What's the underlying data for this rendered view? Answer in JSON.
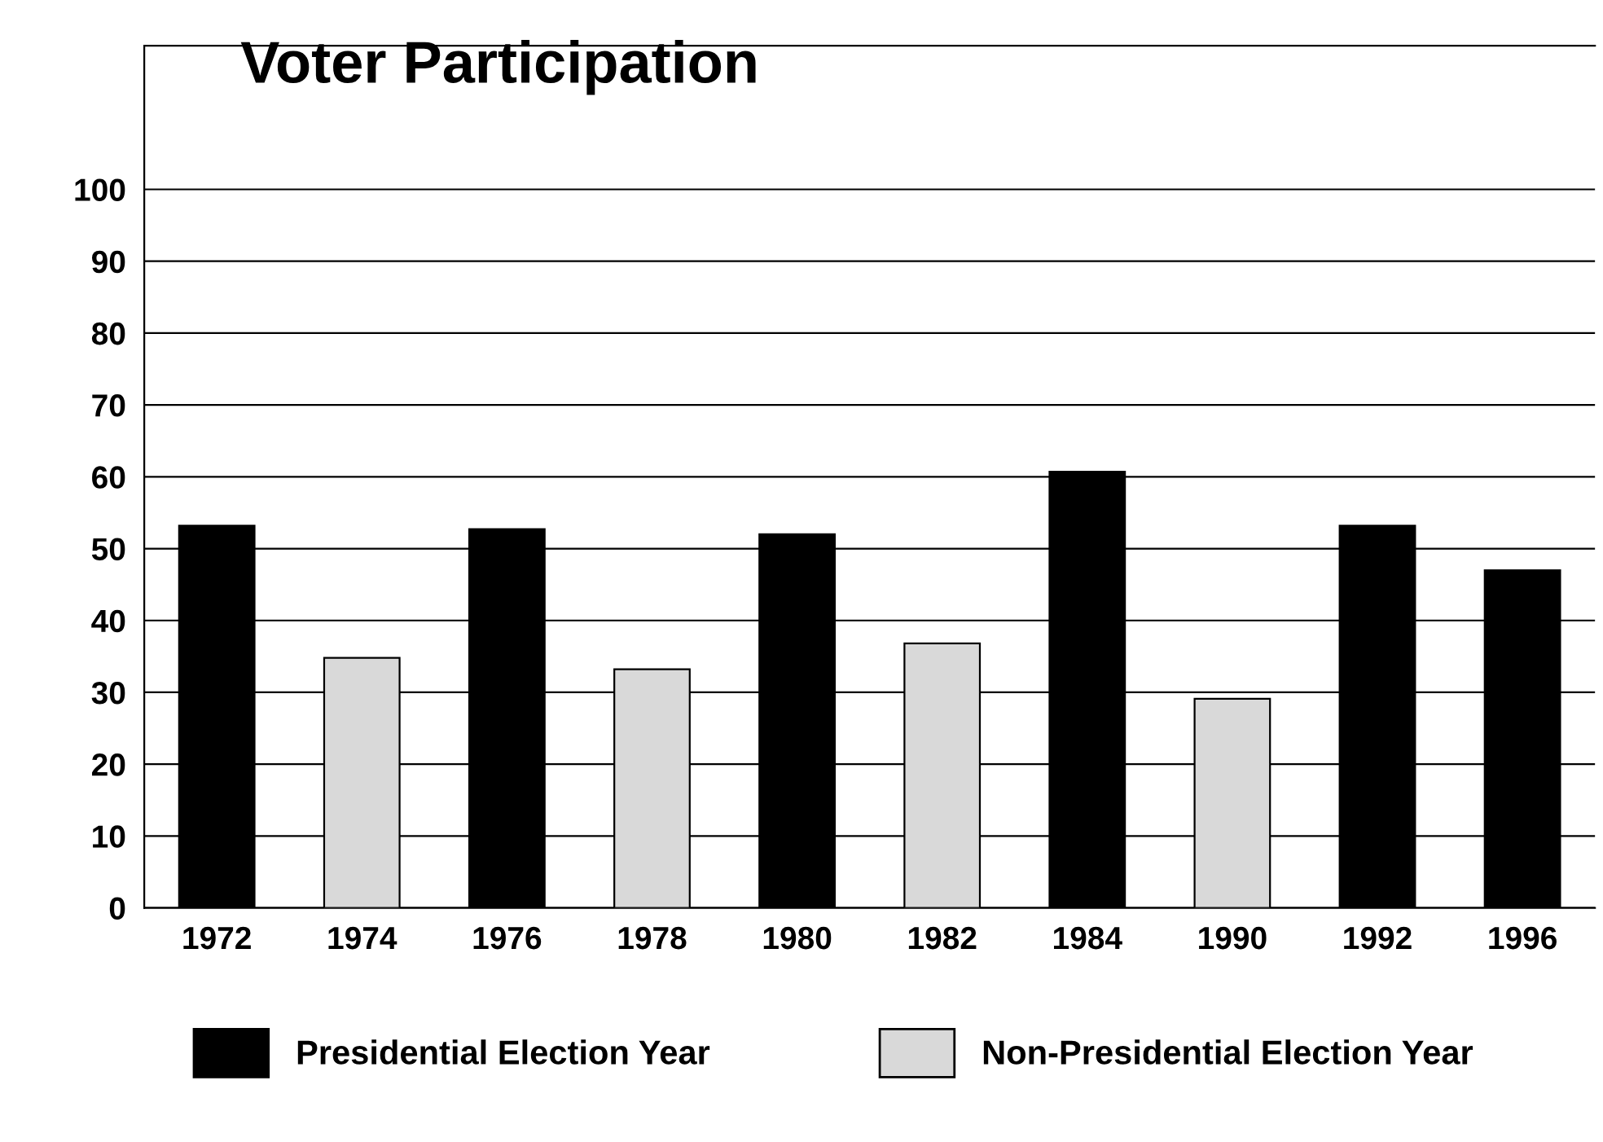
{
  "chart_data": {
    "type": "bar",
    "title": "Voter Participation",
    "categories": [
      "1972",
      "1974",
      "1976",
      "1978",
      "1980",
      "1982",
      "1984",
      "1990",
      "1992",
      "1996"
    ],
    "series": [
      {
        "name": "Presidential Election Year",
        "color": "#000000",
        "values": [
          53.2,
          null,
          52.7,
          null,
          52.0,
          null,
          60.7,
          null,
          53.2,
          47.0
        ]
      },
      {
        "name": "Non-Presidential Election Year",
        "color": "#d9d9d9",
        "values": [
          null,
          34.8,
          null,
          33.2,
          null,
          36.8,
          null,
          29.1,
          null,
          null
        ]
      }
    ],
    "ylim": [
      0,
      120
    ],
    "yticks": [
      0,
      10,
      20,
      30,
      40,
      50,
      60,
      70,
      80,
      90,
      100
    ],
    "grid": "y",
    "legend": "bottom"
  }
}
